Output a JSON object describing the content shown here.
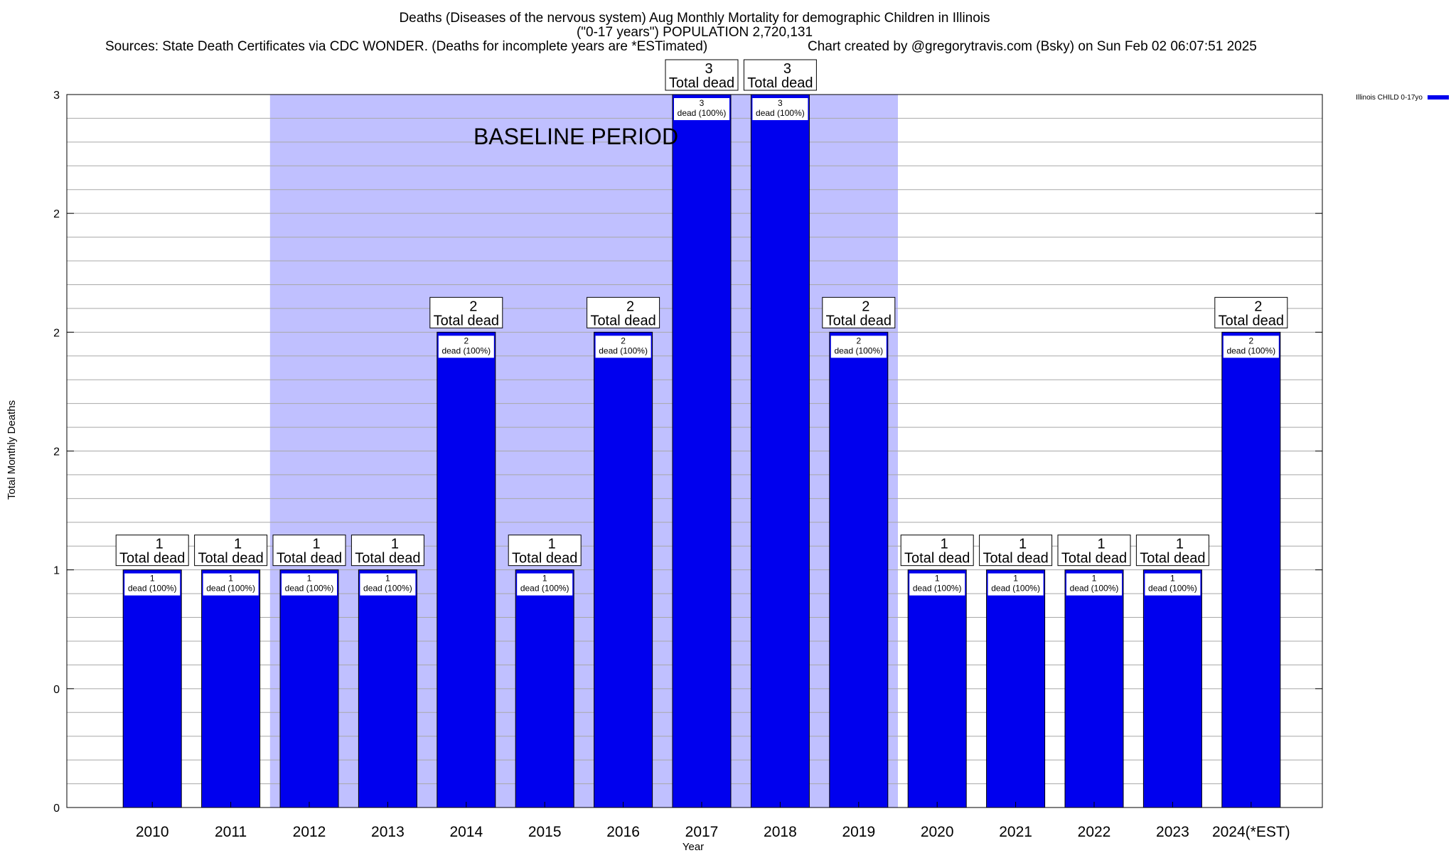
{
  "chart_data": {
    "type": "bar",
    "title_lines": [
      "Deaths (Diseases of the nervous system) Aug Monthly Mortality for demographic Children in Illinois",
      "(\"0-17 years\") POPULATION 2,720,131"
    ],
    "subtitle_left": "Sources: State Death Certificates via CDC WONDER. (Deaths for incomplete years are *ESTimated)",
    "subtitle_right": "Chart created by @gregorytravis.com (Bsky) on Sun Feb 02 06:07:51 2025",
    "xlabel": "Year",
    "ylabel": "Total Monthly Deaths",
    "categories": [
      "2010",
      "2011",
      "2012",
      "2013",
      "2014",
      "2015",
      "2016",
      "2017",
      "2018",
      "2019",
      "2020",
      "2021",
      "2022",
      "2023",
      "2024(*EST)"
    ],
    "series": [
      {
        "name": "Illinois CHILD 0-17yo",
        "color": "#0000ee",
        "values": [
          1,
          1,
          1,
          1,
          2,
          1,
          2,
          3,
          3,
          2,
          1,
          1,
          1,
          1,
          2
        ]
      }
    ],
    "total_labels": [
      "1",
      "1",
      "1",
      "1",
      "2",
      "1",
      "2",
      "3",
      "3",
      "2",
      "1",
      "1",
      "1",
      "1",
      "2"
    ],
    "total_label_suffix": "Total dead",
    "inner_labels": [
      "1",
      "1",
      "1",
      "1",
      "2",
      "1",
      "2",
      "3",
      "3",
      "2",
      "1",
      "1",
      "1",
      "1",
      "2"
    ],
    "inner_label_suffix": "dead (100%)",
    "ylim": [
      0,
      3
    ],
    "y_ticks": [
      {
        "value": 0,
        "label": "0"
      },
      {
        "value": 0.5,
        "label": "0"
      },
      {
        "value": 1,
        "label": "1"
      },
      {
        "value": 1.5,
        "label": "2"
      },
      {
        "value": 2,
        "label": "2"
      },
      {
        "value": 2.5,
        "label": "2"
      },
      {
        "value": 3,
        "label": "3"
      }
    ],
    "minor_grid_step": 0.1,
    "grid": true,
    "legend_position": "top-right",
    "baseline_period": {
      "label": "BASELINE PERIOD",
      "start_category": "2012",
      "end_category": "2019",
      "color": "#c0c0ff"
    }
  }
}
